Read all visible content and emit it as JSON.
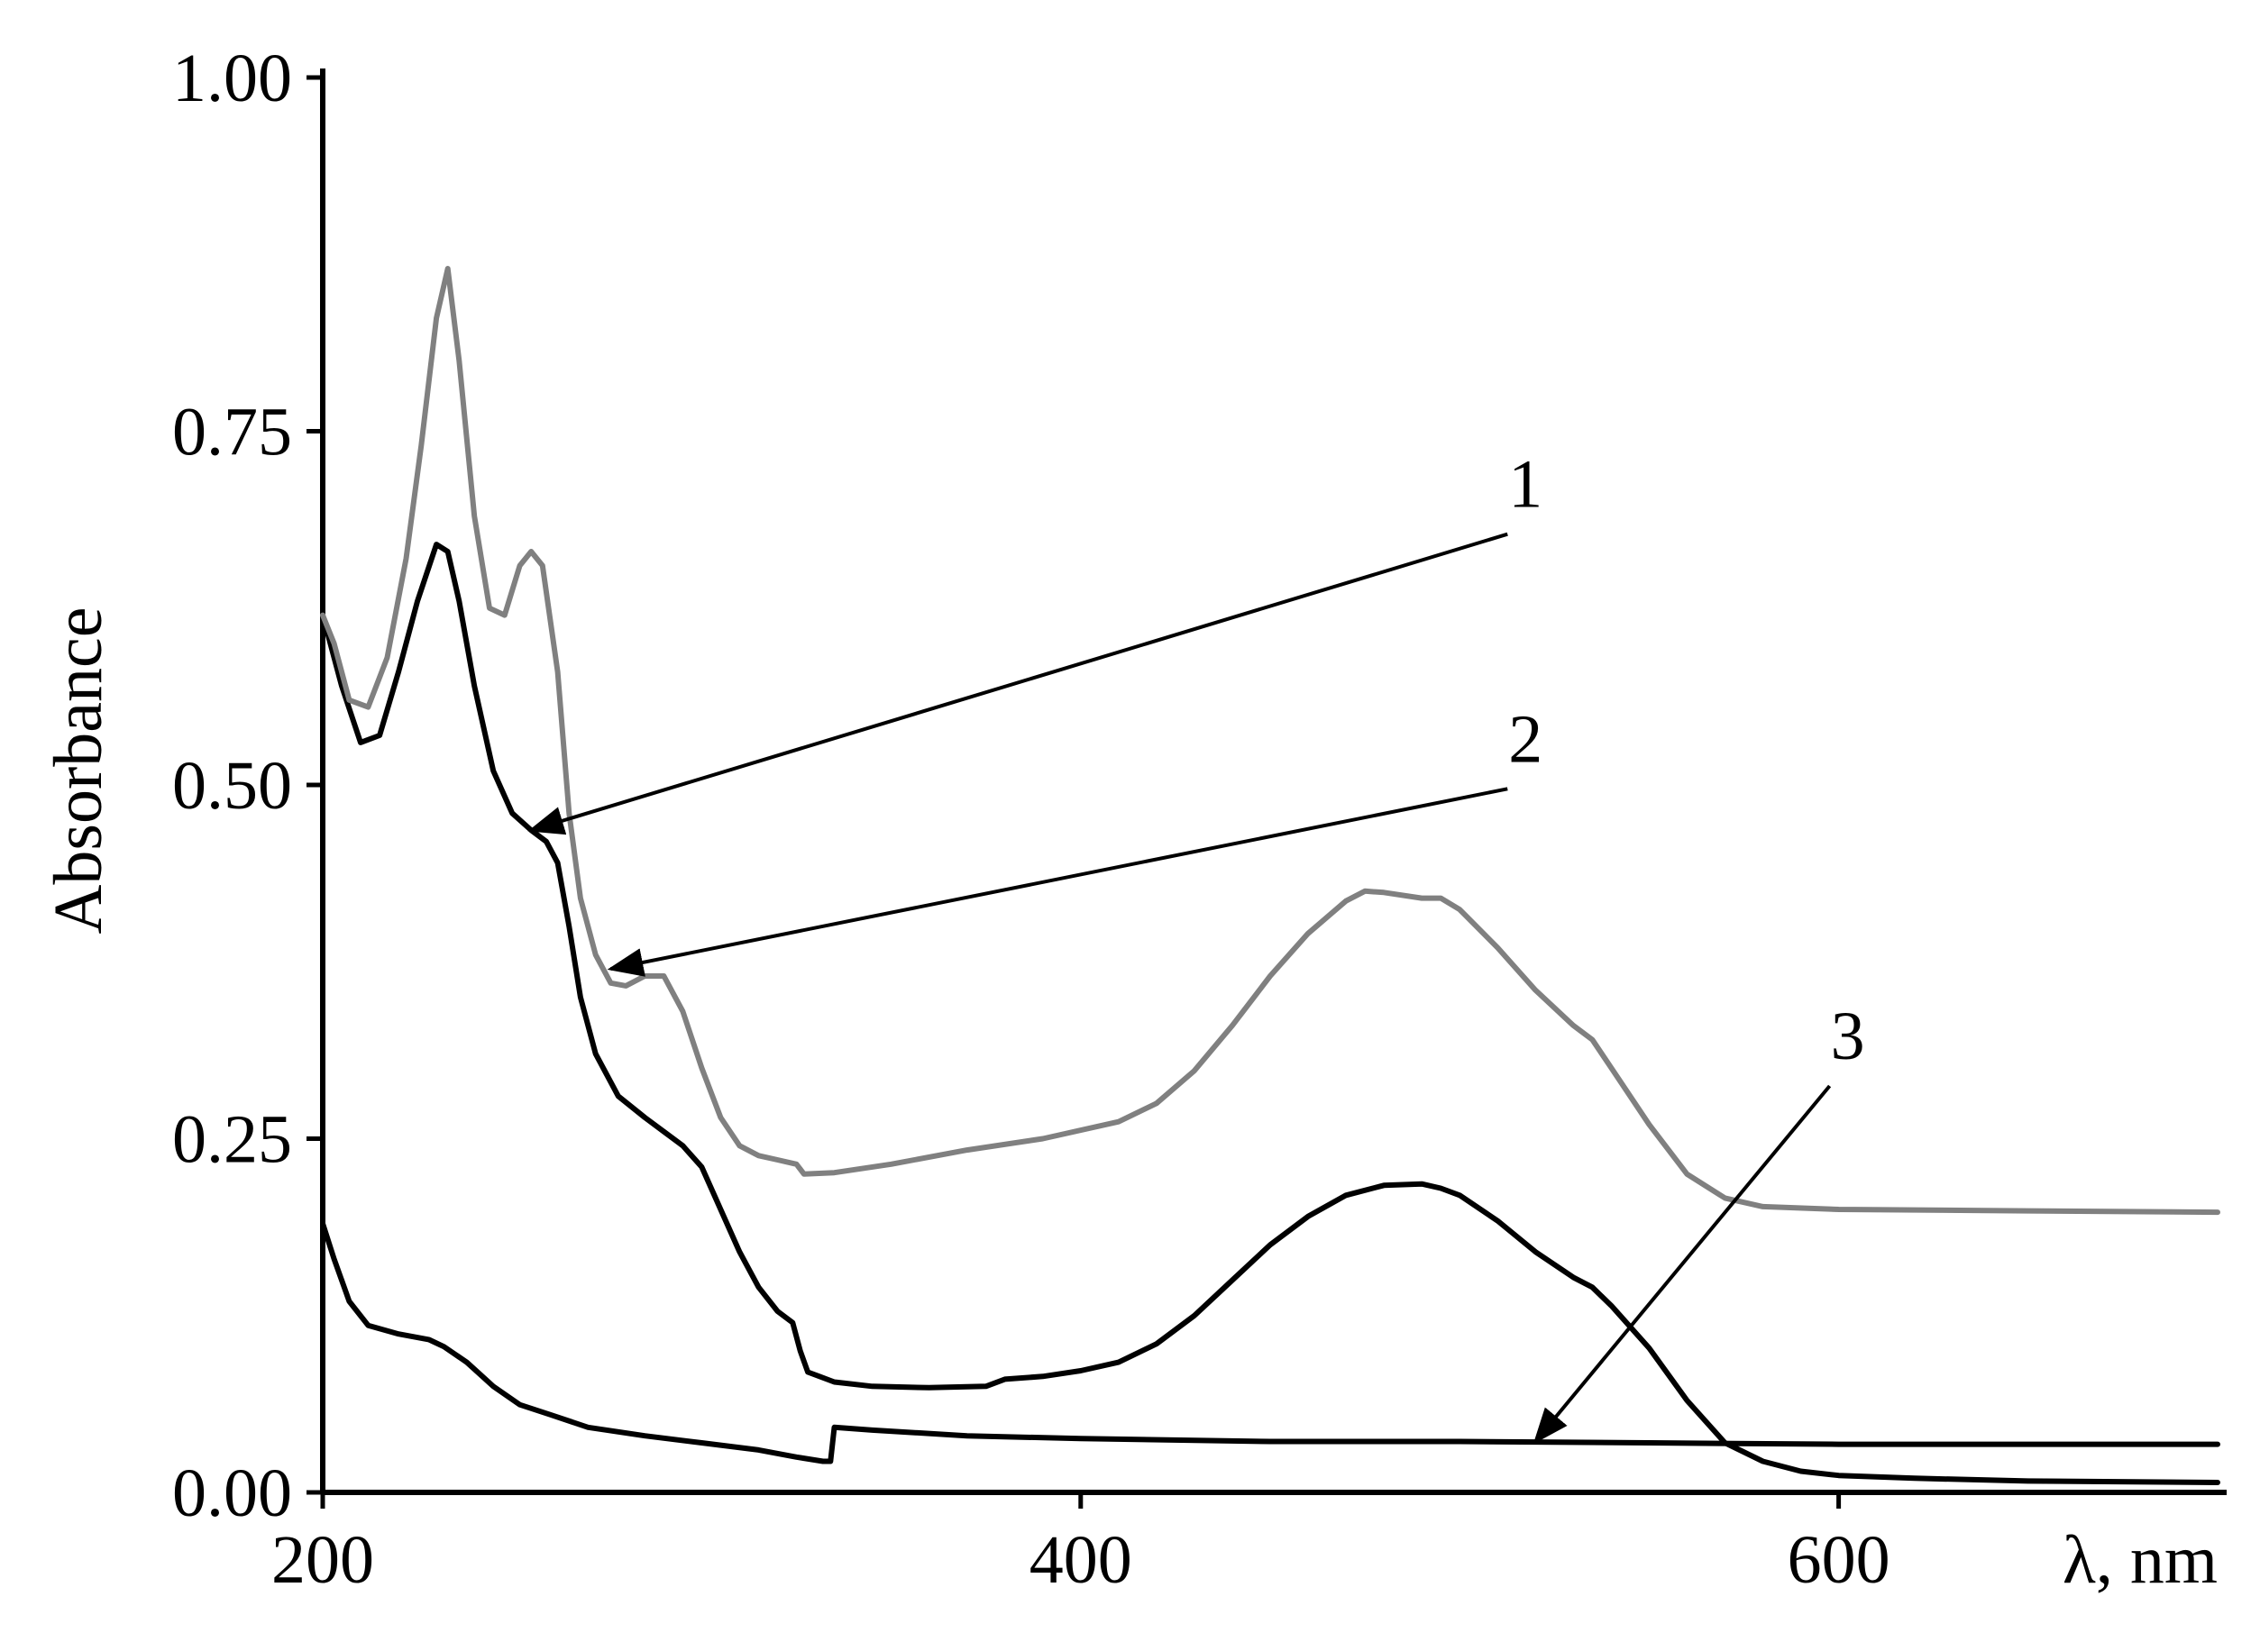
{
  "chart_data": {
    "type": "line",
    "title": "",
    "xlabel": "λ, nm",
    "ylabel": "Absorbance",
    "xlim": [
      200,
      700
    ],
    "ylim": [
      0,
      1.0
    ],
    "grid": false,
    "x_ticks": [
      {
        "value": 200,
        "label": "200"
      },
      {
        "value": 400,
        "label": "400"
      },
      {
        "value": 600,
        "label": "600"
      }
    ],
    "y_ticks": [
      {
        "value": 0.0,
        "label": "0.00"
      },
      {
        "value": 0.25,
        "label": "0.25"
      },
      {
        "value": 0.5,
        "label": "0.50"
      },
      {
        "value": 0.75,
        "label": "0.75"
      },
      {
        "value": 1.0,
        "label": "1.00"
      }
    ],
    "colors": {
      "series_1": "#000000",
      "series_2": "#808080",
      "series_3": "#000000"
    },
    "series": [
      {
        "id": "1",
        "points": [
          [
            200,
            0.62
          ],
          [
            205,
            0.57
          ],
          [
            210,
            0.53
          ],
          [
            215,
            0.535
          ],
          [
            220,
            0.58
          ],
          [
            225,
            0.63
          ],
          [
            230,
            0.67
          ],
          [
            233,
            0.665
          ],
          [
            236,
            0.63
          ],
          [
            240,
            0.57
          ],
          [
            245,
            0.51
          ],
          [
            250,
            0.48
          ],
          [
            255,
            0.468
          ],
          [
            259,
            0.46
          ],
          [
            262,
            0.445
          ],
          [
            265,
            0.4
          ],
          [
            268,
            0.35
          ],
          [
            272,
            0.31
          ],
          [
            278,
            0.28
          ],
          [
            285,
            0.265
          ],
          [
            290,
            0.255
          ],
          [
            295,
            0.245
          ],
          [
            300,
            0.23
          ],
          [
            305,
            0.2
          ],
          [
            310,
            0.17
          ],
          [
            315,
            0.145
          ],
          [
            320,
            0.128
          ],
          [
            324,
            0.12
          ],
          [
            326,
            0.1
          ],
          [
            328,
            0.085
          ],
          [
            335,
            0.078
          ],
          [
            345,
            0.075
          ],
          [
            360,
            0.074
          ],
          [
            375,
            0.075
          ],
          [
            380,
            0.08
          ],
          [
            390,
            0.082
          ],
          [
            400,
            0.086
          ],
          [
            410,
            0.092
          ],
          [
            420,
            0.105
          ],
          [
            430,
            0.125
          ],
          [
            440,
            0.15
          ],
          [
            450,
            0.175
          ],
          [
            460,
            0.195
          ],
          [
            470,
            0.21
          ],
          [
            480,
            0.217
          ],
          [
            490,
            0.218
          ],
          [
            495,
            0.215
          ],
          [
            500,
            0.21
          ],
          [
            510,
            0.192
          ],
          [
            520,
            0.17
          ],
          [
            530,
            0.152
          ],
          [
            535,
            0.145
          ],
          [
            540,
            0.132
          ],
          [
            550,
            0.102
          ],
          [
            560,
            0.065
          ],
          [
            570,
            0.035
          ],
          [
            580,
            0.022
          ],
          [
            590,
            0.015
          ],
          [
            600,
            0.012
          ],
          [
            620,
            0.01
          ],
          [
            650,
            0.008
          ],
          [
            700,
            0.007
          ]
        ]
      },
      {
        "id": "2",
        "points": [
          [
            200,
            0.62
          ],
          [
            203,
            0.6
          ],
          [
            207,
            0.56
          ],
          [
            212,
            0.555
          ],
          [
            217,
            0.59
          ],
          [
            222,
            0.66
          ],
          [
            226,
            0.74
          ],
          [
            230,
            0.83
          ],
          [
            233,
            0.865
          ],
          [
            236,
            0.8
          ],
          [
            240,
            0.69
          ],
          [
            244,
            0.625
          ],
          [
            248,
            0.62
          ],
          [
            252,
            0.655
          ],
          [
            255,
            0.665
          ],
          [
            258,
            0.655
          ],
          [
            262,
            0.58
          ],
          [
            265,
            0.48
          ],
          [
            268,
            0.42
          ],
          [
            272,
            0.38
          ],
          [
            276,
            0.36
          ],
          [
            280,
            0.358
          ],
          [
            285,
            0.365
          ],
          [
            290,
            0.365
          ],
          [
            295,
            0.34
          ],
          [
            300,
            0.3
          ],
          [
            305,
            0.265
          ],
          [
            310,
            0.245
          ],
          [
            315,
            0.238
          ],
          [
            320,
            0.235
          ],
          [
            325,
            0.232
          ],
          [
            327,
            0.225
          ],
          [
            335,
            0.226
          ],
          [
            350,
            0.232
          ],
          [
            370,
            0.242
          ],
          [
            390,
            0.25
          ],
          [
            410,
            0.262
          ],
          [
            420,
            0.275
          ],
          [
            430,
            0.298
          ],
          [
            440,
            0.33
          ],
          [
            450,
            0.365
          ],
          [
            460,
            0.395
          ],
          [
            470,
            0.418
          ],
          [
            475,
            0.425
          ],
          [
            480,
            0.424
          ],
          [
            490,
            0.42
          ],
          [
            495,
            0.42
          ],
          [
            500,
            0.412
          ],
          [
            510,
            0.385
          ],
          [
            520,
            0.355
          ],
          [
            530,
            0.33
          ],
          [
            535,
            0.32
          ],
          [
            540,
            0.3
          ],
          [
            550,
            0.26
          ],
          [
            560,
            0.225
          ],
          [
            570,
            0.208
          ],
          [
            580,
            0.202
          ],
          [
            600,
            0.2
          ],
          [
            650,
            0.199
          ],
          [
            700,
            0.198
          ]
        ]
      },
      {
        "id": "3",
        "points": [
          [
            200,
            0.19
          ],
          [
            203,
            0.165
          ],
          [
            207,
            0.135
          ],
          [
            212,
            0.118
          ],
          [
            220,
            0.112
          ],
          [
            228,
            0.108
          ],
          [
            232,
            0.103
          ],
          [
            238,
            0.092
          ],
          [
            245,
            0.075
          ],
          [
            252,
            0.062
          ],
          [
            260,
            0.055
          ],
          [
            270,
            0.046
          ],
          [
            285,
            0.04
          ],
          [
            300,
            0.035
          ],
          [
            315,
            0.03
          ],
          [
            325,
            0.025
          ],
          [
            332,
            0.022
          ],
          [
            334,
            0.022
          ],
          [
            335,
            0.046
          ],
          [
            345,
            0.044
          ],
          [
            370,
            0.04
          ],
          [
            400,
            0.038
          ],
          [
            450,
            0.036
          ],
          [
            500,
            0.036
          ],
          [
            550,
            0.035
          ],
          [
            600,
            0.034
          ],
          [
            650,
            0.034
          ],
          [
            700,
            0.034
          ]
        ]
      }
    ],
    "annotations": [
      {
        "label": "1",
        "series": "1",
        "target": [
          255,
          0.468
        ],
        "text_at": [
          515,
          0.69
        ]
      },
      {
        "label": "2",
        "series": "2",
        "target": [
          276,
          0.37
        ],
        "text_at": [
          515,
          0.51
        ]
      },
      {
        "label": "3",
        "series": "3",
        "target": [
          520,
          0.036
        ],
        "text_at": [
          600,
          0.3
        ]
      }
    ]
  }
}
